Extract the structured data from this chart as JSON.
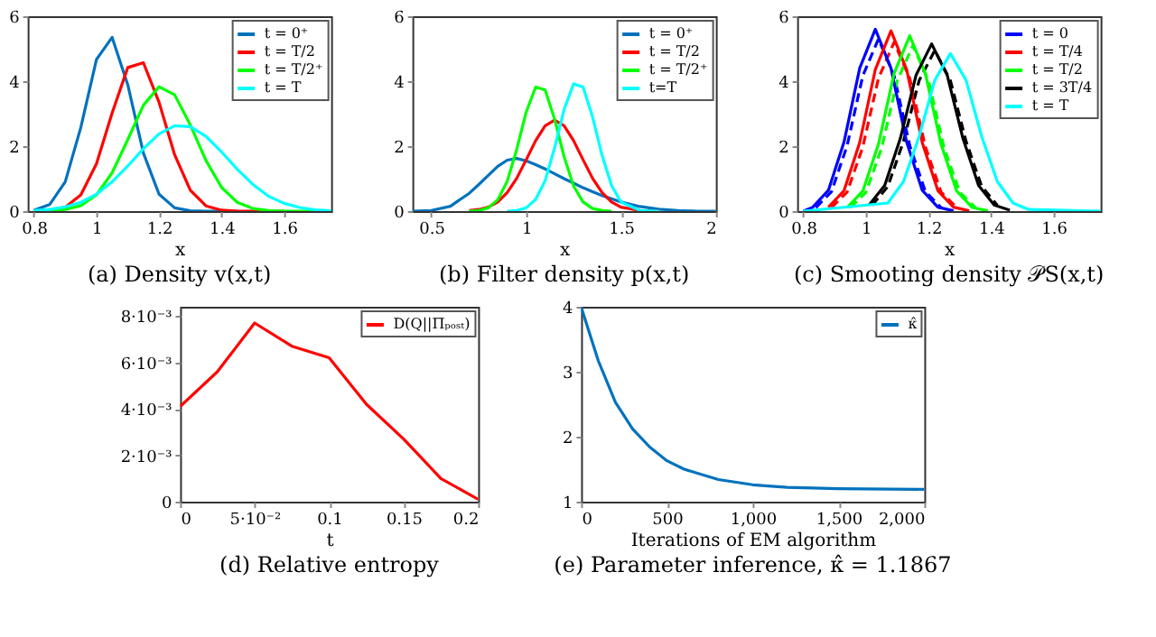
{
  "chart_data": [
    {
      "type": "line",
      "title": "(a) Density v(x,t)",
      "xlabel": "x",
      "xlim": [
        0.78,
        1.75
      ],
      "xticks": [
        0.8,
        1,
        1.2,
        1.4,
        1.6
      ],
      "ylim": [
        0,
        6
      ],
      "yticks": [
        0,
        2,
        4,
        6
      ],
      "legend": "top right",
      "grid": false,
      "x": [
        0.8,
        0.85,
        0.9,
        0.95,
        1.0,
        1.05,
        1.1,
        1.15,
        1.2,
        1.25,
        1.3,
        1.35,
        1.4,
        1.45,
        1.5,
        1.55,
        1.6,
        1.65,
        1.7,
        1.75
      ],
      "series": [
        {
          "name": "t = 0⁺",
          "color": "#0072bd",
          "values": [
            0.03,
            0.2,
            0.9,
            2.58,
            4.67,
            5.35,
            3.89,
            1.79,
            0.52,
            0.1,
            0.01,
            0,
            0,
            0,
            null,
            null,
            null,
            null,
            null,
            null
          ]
        },
        {
          "name": "t = T/2",
          "color": "#ff0000",
          "values": [
            0,
            0.02,
            0.12,
            0.5,
            1.46,
            3.02,
            4.42,
            4.57,
            3.35,
            1.73,
            0.64,
            0.16,
            0.03,
            0,
            0,
            0,
            0,
            null,
            null,
            null
          ]
        },
        {
          "name": "t = T/2⁺",
          "color": "#00ff00",
          "values": [
            0,
            0.01,
            0.05,
            0.17,
            0.5,
            1.18,
            2.2,
            3.26,
            3.83,
            3.58,
            2.65,
            1.56,
            0.73,
            0.27,
            0.08,
            0.02,
            0,
            0,
            0,
            0
          ]
        },
        {
          "name": "t = T",
          "color": "#00ffff",
          "values": [
            0.02,
            0.05,
            0.13,
            0.27,
            0.52,
            0.9,
            1.39,
            1.92,
            2.38,
            2.63,
            2.6,
            2.3,
            1.82,
            1.29,
            0.82,
            0.46,
            0.24,
            0.11,
            0.04,
            0.01
          ]
        }
      ]
    },
    {
      "type": "line",
      "title": "(b) Filter density p(x,t)",
      "xlabel": "x",
      "xlim": [
        0.4,
        2
      ],
      "xticks": [
        0.5,
        1,
        1.5,
        2
      ],
      "ylim": [
        0,
        6
      ],
      "yticks": [
        0,
        2,
        4,
        6
      ],
      "legend": "top right",
      "grid": false,
      "x": [
        0.4,
        0.5,
        0.6,
        0.7,
        0.75,
        0.8,
        0.85,
        0.9,
        0.95,
        1.0,
        1.05,
        1.1,
        1.15,
        1.2,
        1.25,
        1.3,
        1.35,
        1.4,
        1.45,
        1.5,
        1.6,
        1.7,
        1.8,
        1.9,
        2.0
      ],
      "series": [
        {
          "name": "t = 0⁺",
          "color": "#0072bd",
          "values": [
            0,
            0.02,
            0.15,
            0.55,
            0.82,
            1.1,
            1.38,
            1.57,
            1.62,
            1.55,
            1.43,
            1.3,
            1.15,
            1.0,
            0.86,
            0.72,
            0.6,
            0.48,
            0.38,
            0.28,
            0.14,
            0.06,
            0.02,
            0,
            0
          ]
        },
        {
          "name": "t = T/2",
          "color": "#ff0000",
          "values": [
            null,
            null,
            null,
            0.02,
            0.05,
            0.12,
            0.28,
            0.57,
            1.01,
            1.58,
            2.17,
            2.63,
            2.8,
            2.63,
            2.17,
            1.58,
            1.01,
            0.57,
            0.28,
            0.12,
            0.02,
            0,
            null,
            null,
            null
          ]
        },
        {
          "name": "t = T/2⁺",
          "color": "#00ff00",
          "values": [
            null,
            null,
            null,
            0,
            0.02,
            0.1,
            0.35,
            0.92,
            1.9,
            3.05,
            3.82,
            3.73,
            2.83,
            1.67,
            0.77,
            0.28,
            0.08,
            0.02,
            0,
            null,
            null,
            null,
            null,
            null,
            null
          ]
        },
        {
          "name": "t=T",
          "color": "#00ffff",
          "values": [
            null,
            null,
            null,
            null,
            null,
            null,
            null,
            0,
            0.02,
            0.1,
            0.36,
            0.94,
            1.95,
            3.13,
            3.92,
            3.82,
            2.9,
            1.72,
            0.79,
            0.28,
            0.02,
            0,
            null,
            null,
            null
          ]
        }
      ]
    },
    {
      "type": "line",
      "title": "(c) Smooting density 𝒫S(x,t)",
      "xlabel": "x",
      "xlim": [
        0.78,
        1.75
      ],
      "xticks": [
        0.8,
        1,
        1.2,
        1.4,
        1.6
      ],
      "ylim": [
        0,
        6
      ],
      "yticks": [
        0,
        2,
        4,
        6
      ],
      "legend": "top right",
      "grid": false,
      "series": [
        {
          "color": "#0000ff",
          "line_style": "dashed",
          "x": [
            0.84,
            0.89,
            0.94,
            0.99,
            1.04,
            1.09,
            1.14,
            1.19,
            1.24
          ],
          "values": [
            0.11,
            0.6,
            2.02,
            4.17,
            5.3,
            4.17,
            2.02,
            0.6,
            0.11
          ]
        },
        {
          "color": "#ff0000",
          "line_style": "dashed",
          "x": [
            0.89,
            0.94,
            0.99,
            1.04,
            1.09,
            1.14,
            1.19,
            1.24,
            1.29
          ],
          "values": [
            0.11,
            0.59,
            1.98,
            4.09,
            5.2,
            4.09,
            1.98,
            0.59,
            0.11
          ]
        },
        {
          "color": "#00ff00",
          "line_style": "dashed",
          "x": [
            0.95,
            1.0,
            1.05,
            1.1,
            1.15,
            1.2,
            1.25,
            1.3,
            1.35
          ],
          "values": [
            0.11,
            0.58,
            1.94,
            4.01,
            5.1,
            4.01,
            1.94,
            0.58,
            0.11
          ]
        },
        {
          "color": "#000000",
          "line_style": "dashed",
          "x": [
            1.02,
            1.07,
            1.12,
            1.17,
            1.22,
            1.27,
            1.32,
            1.37,
            1.42
          ],
          "values": [
            0.18,
            0.76,
            2.15,
            4.02,
            4.95,
            4.02,
            2.15,
            0.76,
            0.18
          ]
        },
        {
          "name": "t = 0",
          "color": "#0000ff",
          "x": [
            0.8,
            0.83,
            0.88,
            0.93,
            0.98,
            1.03,
            1.08,
            1.13,
            1.18,
            1.23,
            1.28
          ],
          "values": [
            0,
            0.12,
            0.64,
            2.13,
            4.4,
            5.6,
            4.4,
            2.13,
            0.64,
            0.12,
            0.01
          ]
        },
        {
          "name": "t = T/4",
          "color": "#ff0000",
          "x": [
            0.88,
            0.93,
            0.98,
            1.03,
            1.08,
            1.13,
            1.18,
            1.23,
            1.28,
            1.33
          ],
          "values": [
            0.12,
            0.63,
            2.11,
            4.36,
            5.55,
            4.36,
            2.11,
            0.63,
            0.12,
            0.01
          ]
        },
        {
          "name": "t = T/2",
          "color": "#00ff00",
          "x": [
            0.94,
            0.99,
            1.04,
            1.09,
            1.14,
            1.19,
            1.24,
            1.29,
            1.34,
            1.39
          ],
          "values": [
            0.11,
            0.62,
            2.06,
            4.24,
            5.4,
            4.24,
            2.06,
            0.62,
            0.11,
            0.01
          ]
        },
        {
          "name": "t = 3T/4",
          "color": "#000000",
          "x": [
            1.01,
            1.06,
            1.11,
            1.16,
            1.21,
            1.26,
            1.31,
            1.36,
            1.41,
            1.46
          ],
          "values": [
            0.19,
            0.79,
            2.24,
            4.18,
            5.15,
            4.18,
            2.24,
            0.79,
            0.19,
            0.03
          ]
        },
        {
          "name": "t = T",
          "color": "#00ffff",
          "x": [
            0.8,
            1.07,
            1.12,
            1.17,
            1.22,
            1.27,
            1.32,
            1.37,
            1.42,
            1.47,
            1.52,
            1.75
          ],
          "values": [
            0,
            0.25,
            0.91,
            2.3,
            4.03,
            4.85,
            4.03,
            2.3,
            0.91,
            0.25,
            0.05,
            0
          ]
        }
      ]
    },
    {
      "type": "line",
      "title": "(d) Relative entropy",
      "xlabel": "t",
      "xlim": [
        0,
        0.2
      ],
      "xticks": [
        0,
        {
          "value": 0.05,
          "label": "5·10⁻²"
        },
        0.1,
        0.15,
        0.2
      ],
      "ylim": [
        0,
        0.0084
      ],
      "yticks": [
        0,
        {
          "value": 0.002,
          "label": "2·10⁻³"
        },
        {
          "value": 0.004,
          "label": "4·10⁻³"
        },
        {
          "value": 0.006,
          "label": "6·10⁻³"
        },
        {
          "value": 0.008,
          "label": "8·10⁻³"
        }
      ],
      "legend": "top right",
      "grid": false,
      "x": [
        0,
        0.025,
        0.05,
        0.075,
        0.1,
        0.125,
        0.15,
        0.175,
        0.2
      ],
      "series": [
        {
          "name": "D(Q||Πₚₒₛₜ)",
          "color": "#ff0000",
          "values": [
            0.0041,
            0.0056,
            0.0077,
            0.0067,
            0.0062,
            0.0042,
            0.0027,
            0.001,
            0.0001
          ]
        }
      ]
    },
    {
      "type": "line",
      "title": "(e) Parameter inference, κ̂ = 1.1867",
      "xlabel": "Iterations of EM algorithm",
      "xlim": [
        0,
        2000
      ],
      "xticks": [
        0,
        500,
        {
          "value": 1000,
          "label": "1,000"
        },
        {
          "value": 1500,
          "label": "1,500"
        },
        {
          "value": 2000,
          "label": "2,000"
        }
      ],
      "ylim": [
        1,
        4
      ],
      "yticks": [
        1,
        2,
        3,
        4
      ],
      "legend": "top right",
      "grid": false,
      "x": [
        0,
        100,
        200,
        300,
        400,
        500,
        600,
        800,
        1000,
        1200,
        1500,
        2000
      ],
      "series": [
        {
          "name": "κ̂",
          "color": "#0072bd",
          "values": [
            4.0,
            3.17,
            2.53,
            2.12,
            1.84,
            1.63,
            1.5,
            1.34,
            1.26,
            1.22,
            1.2,
            1.19
          ]
        }
      ]
    }
  ]
}
